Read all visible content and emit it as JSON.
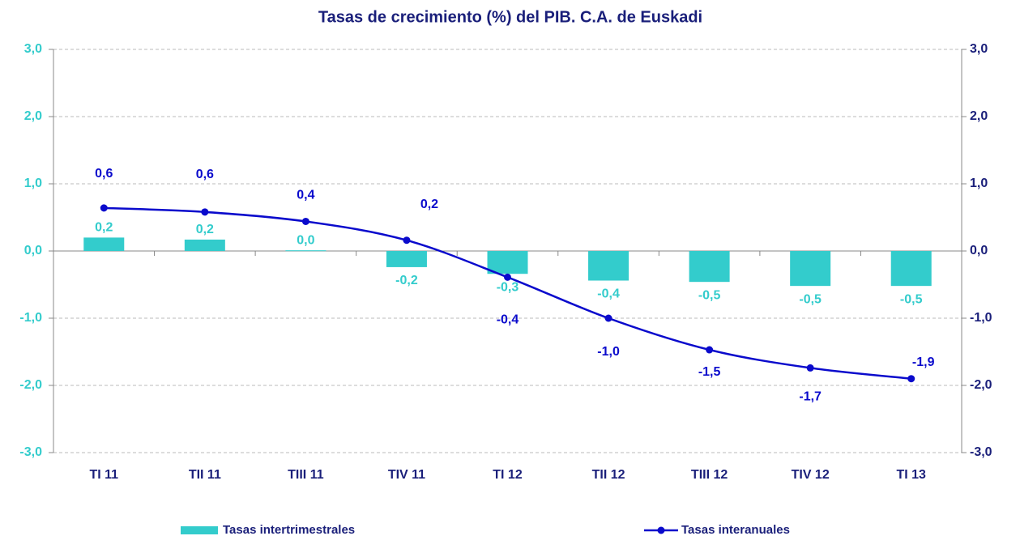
{
  "chart_data": {
    "type": "bar-line",
    "title": "Tasas de crecimiento (%) del PIB. C.A. de Euskadi",
    "categories": [
      "TI 11",
      "TII 11",
      "TIII 11",
      "TIV 11",
      "TI 12",
      "TII 12",
      "TIII 12",
      "TIV 12",
      "TI 13"
    ],
    "series": [
      {
        "name": "Tasas intertrimestrales",
        "type": "bar",
        "color": "#33cccc",
        "values": [
          0.2,
          0.17,
          0.01,
          -0.24,
          -0.34,
          -0.44,
          -0.46,
          -0.52,
          -0.52
        ],
        "value_labels": [
          "0,2",
          "0,2",
          "0,0",
          "-0,2",
          "-0,3",
          "-0,4",
          "-0,5",
          "-0,5",
          "-0,5"
        ]
      },
      {
        "name": "Tasas interanuales",
        "type": "line",
        "color": "#0a0acc",
        "values": [
          0.64,
          0.58,
          0.44,
          0.16,
          -0.39,
          -1.0,
          -1.47,
          -1.74,
          -1.9
        ],
        "value_labels": [
          "0,6",
          "0,6",
          "0,4",
          "0,2",
          "-0,4",
          "-1,0",
          "-1,5",
          "-1,7",
          "-1,9"
        ]
      }
    ],
    "ylim": [
      -3,
      3
    ],
    "yticks": [
      {
        "value": -3,
        "label": "-3,0"
      },
      {
        "value": -2,
        "label": "-2,0"
      },
      {
        "value": -1,
        "label": "-1,0"
      },
      {
        "value": 0,
        "label": "0,0"
      },
      {
        "value": 1,
        "label": "1,0"
      },
      {
        "value": 2,
        "label": "2,0"
      },
      {
        "value": 3,
        "label": "3,0"
      }
    ],
    "y2lim": [
      -3,
      3
    ],
    "y2ticks": [
      {
        "value": -3,
        "label": "-3,0"
      },
      {
        "value": -2,
        "label": "-2,0"
      },
      {
        "value": -1,
        "label": "-1,0"
      },
      {
        "value": 0,
        "label": "0,0"
      },
      {
        "value": 1,
        "label": "1,0"
      },
      {
        "value": 2,
        "label": "2,0"
      },
      {
        "value": 3,
        "label": "3,0"
      }
    ],
    "grid": true
  }
}
